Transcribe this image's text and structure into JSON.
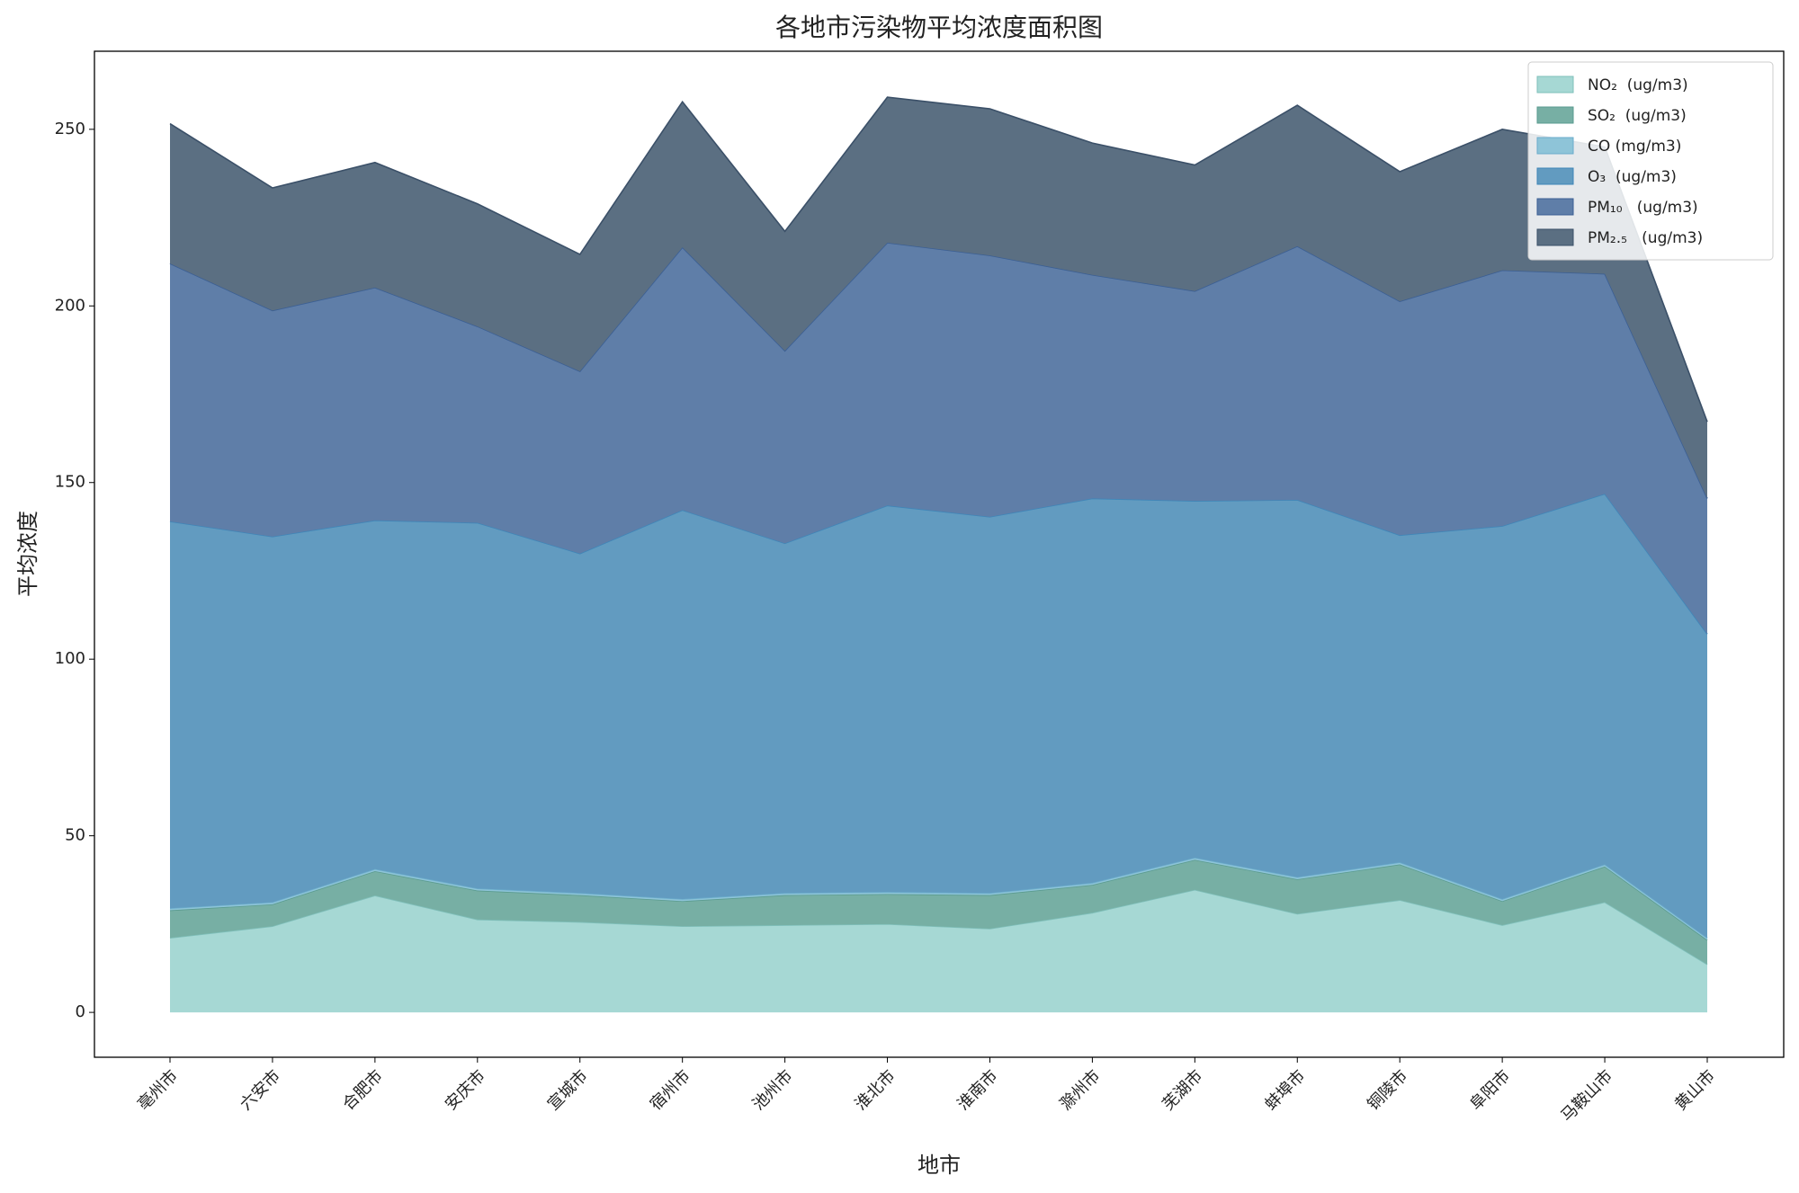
{
  "chart_data": {
    "type": "stacked_area",
    "title": "各地市污染物平均浓度面积图",
    "x_label": "地市",
    "y_label": "平均浓度",
    "categories": [
      "亳州市",
      "六安市",
      "合肥市",
      "安庆市",
      "宣城市",
      "宿州市",
      "池州市",
      "淮北市",
      "淮南市",
      "滁州市",
      "芜湖市",
      "蚌埠市",
      "铜陵市",
      "阜阳市",
      "马鞍山市",
      "黄山市"
    ],
    "series": [
      {
        "name": "NO₂  (ug/m3)",
        "color": "#a6d8d4",
        "edge": "#7fbfba",
        "values": [
          21.1,
          24.4,
          33.1,
          26.3,
          25.6,
          24.4,
          24.7,
          25.0,
          23.7,
          28.2,
          34.7,
          27.9,
          31.8,
          24.7,
          31.2,
          13.6
        ]
      },
      {
        "name": "SO₂  (ug/m3)",
        "color": "#77afa4",
        "edge": "#5a9b8f",
        "values": [
          7.8,
          6.2,
          6.9,
          8.2,
          7.6,
          7.1,
          8.5,
          8.5,
          9.5,
          7.9,
          8.5,
          9.8,
          10.1,
          6.8,
          10.1,
          6.9
        ]
      },
      {
        "name": "CO (mg/m3)",
        "color": "#8ec4d8",
        "edge": "#6aaccb",
        "values": [
          0.6,
          0.6,
          0.6,
          0.6,
          0.6,
          0.6,
          0.6,
          0.6,
          0.6,
          0.6,
          0.6,
          0.6,
          0.6,
          0.6,
          0.6,
          0.6
        ]
      },
      {
        "name": "O₃  (ug/m3)",
        "color": "#629bc0",
        "edge": "#3f86b8",
        "values": [
          109.5,
          103.5,
          98.7,
          103.5,
          96.1,
          110.1,
          99.0,
          109.4,
          106.5,
          108.8,
          101.0,
          106.8,
          92.6,
          105.6,
          104.9,
          86.0
        ]
      },
      {
        "name": "PM₁₀   (ug/m3)",
        "color": "#5f7ea8",
        "edge": "#3b5f94",
        "values": [
          73.0,
          64.0,
          65.9,
          55.6,
          51.6,
          74.4,
          54.5,
          74.4,
          74.0,
          63.3,
          59.4,
          71.8,
          66.2,
          72.4,
          62.3,
          38.4
        ]
      },
      {
        "name": "PM₂.₅   (ug/m3)",
        "color": "#5b6f82",
        "edge": "#3b5068",
        "values": [
          39.6,
          34.7,
          35.4,
          34.7,
          33.1,
          41.2,
          33.8,
          41.2,
          41.5,
          37.3,
          35.7,
          39.9,
          36.7,
          39.9,
          35.9,
          21.7
        ]
      }
    ],
    "ylim": [
      -12.7,
      272.1
    ],
    "yticks": [
      0,
      50,
      100,
      150,
      200,
      250
    ],
    "legend": "upper right"
  }
}
